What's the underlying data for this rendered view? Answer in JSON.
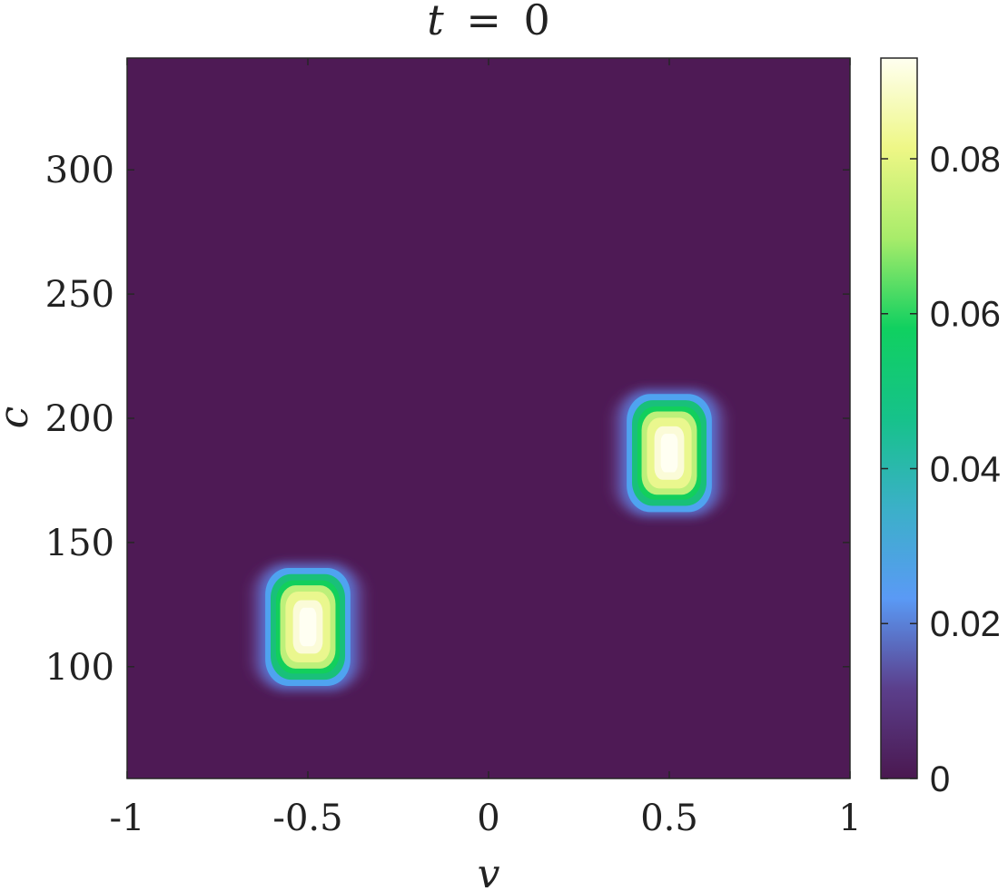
{
  "chart_data": {
    "type": "heatmap",
    "title": "t = 0",
    "title_parts": {
      "var": "t",
      "op": "=",
      "num": "0"
    },
    "xlabel": "v",
    "ylabel": "c",
    "xlim": [
      -1,
      1
    ],
    "ylim": [
      55,
      345
    ],
    "xticks": [
      -1,
      -0.5,
      0,
      0.5,
      1
    ],
    "xtick_labels": [
      "-1",
      "-0.5",
      "0",
      "0.5",
      "1"
    ],
    "yticks": [
      100,
      150,
      200,
      250,
      300
    ],
    "ytick_labels": [
      "100",
      "150",
      "200",
      "250",
      "300"
    ],
    "colorbar": {
      "range": [
        0,
        0.093
      ],
      "ticks": [
        0,
        0.02,
        0.04,
        0.06,
        0.08
      ],
      "tick_labels": [
        "0",
        "0.02",
        "0.04",
        "0.06",
        "0.08"
      ],
      "colormap": "parula-like",
      "stops": [
        "#4a1850",
        "#5b3f8c",
        "#5a9af5",
        "#3bb0c8",
        "#16c28a",
        "#10d060",
        "#a8ec6a",
        "#eef786",
        "#fffff0"
      ]
    },
    "blobs": [
      {
        "v_center": -0.5,
        "c_center": 116,
        "v_halfwidth": 0.16,
        "c_halfwidth": 20,
        "peak": 0.093
      },
      {
        "v_center": 0.5,
        "c_center": 186,
        "v_halfwidth": 0.16,
        "c_halfwidth": 20,
        "peak": 0.093
      }
    ],
    "grid": false,
    "background_value": 0
  }
}
